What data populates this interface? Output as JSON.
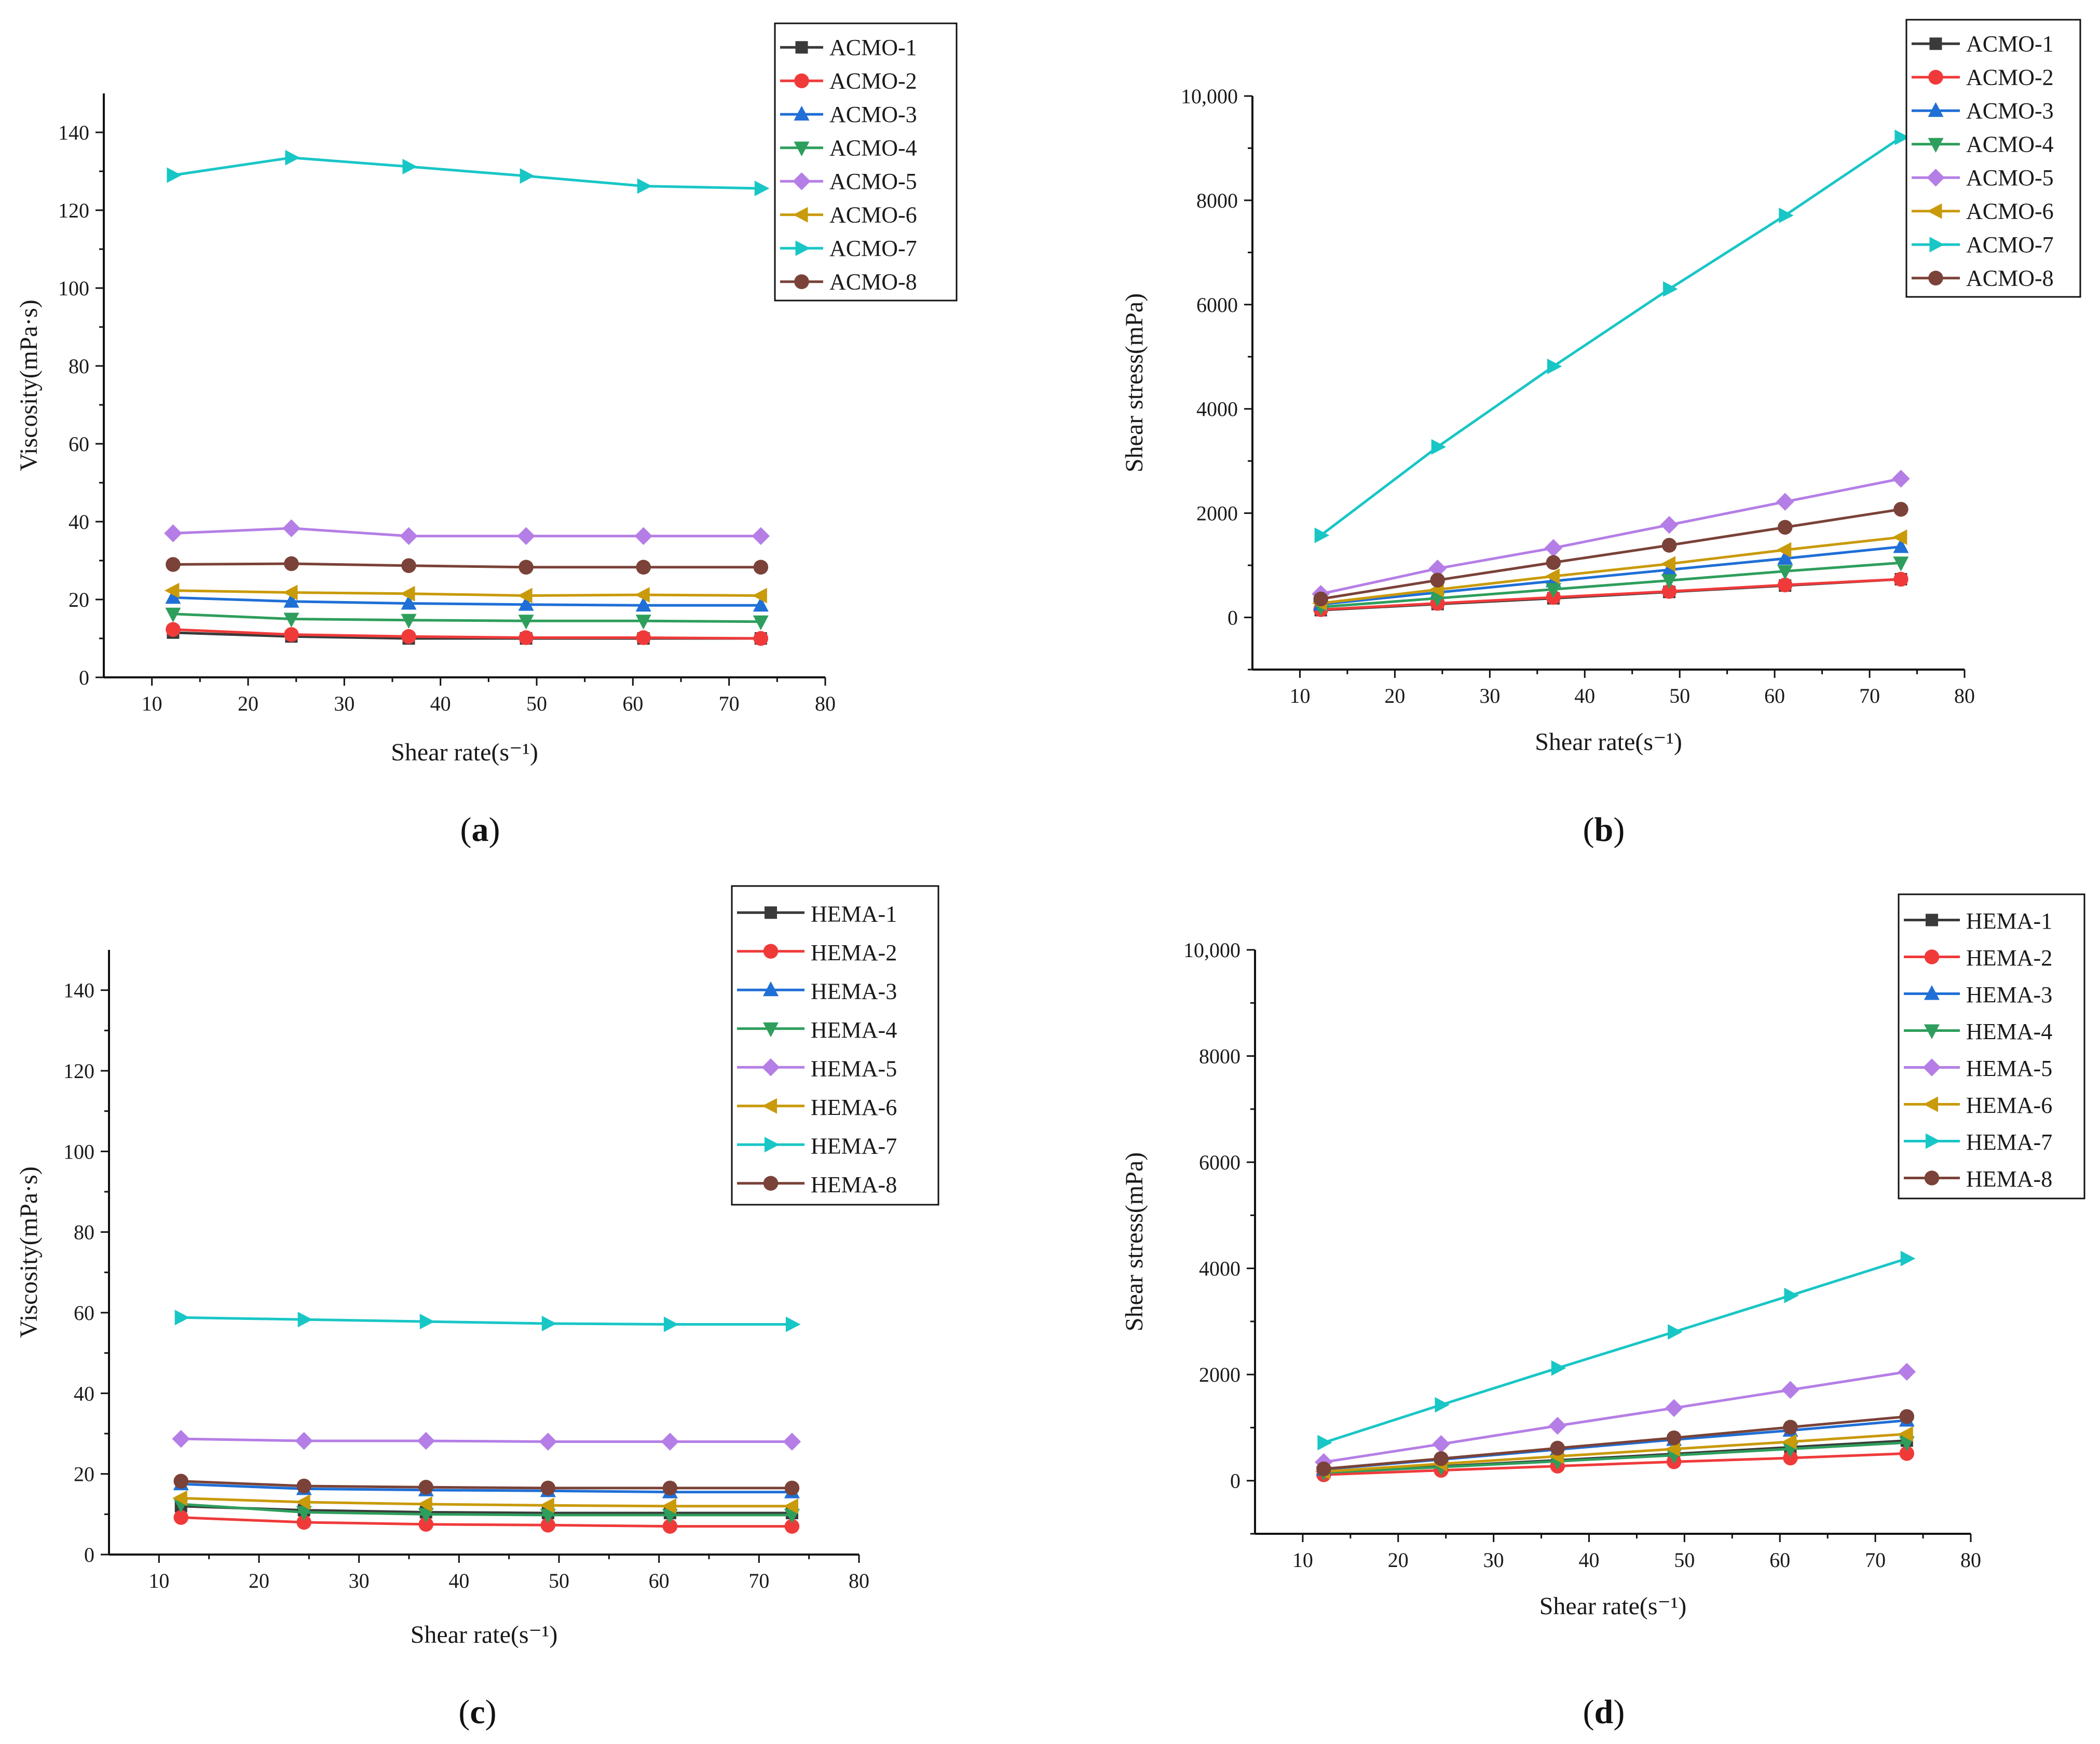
{
  "colors": {
    "black": "#3a3a3a",
    "red": "#f03a3a",
    "blue": "#1f6fd6",
    "green": "#2e9e5c",
    "purple": "#b57ee6",
    "gold": "#c99a0a",
    "cyan": "#19c6c6",
    "brown": "#7a4238"
  },
  "chart_data": [
    {
      "panel": "a",
      "panel_label": "a",
      "type": "line",
      "xlabel": "Shear rate(s⁻¹)",
      "ylabel": "Viscosity(mPa·s)",
      "xlim": [
        5,
        80
      ],
      "ylim": [
        0,
        150
      ],
      "xticks": [
        10,
        20,
        30,
        40,
        50,
        60,
        70,
        80
      ],
      "yticks": [
        0,
        20,
        40,
        60,
        80,
        100,
        120,
        140
      ],
      "ytick_labels": [
        "0",
        "20",
        "40",
        "60",
        "80",
        "100",
        "120",
        "140"
      ],
      "x": [
        12.2,
        24.5,
        36.7,
        48.9,
        61.1,
        73.3
      ],
      "series": [
        {
          "name": "ACMO-1",
          "color": "black",
          "marker": "square",
          "values": [
            11.5,
            10.5,
            10,
            10,
            10,
            10
          ]
        },
        {
          "name": "ACMO-2",
          "color": "red",
          "marker": "circle",
          "values": [
            12.3,
            11,
            10.5,
            10.2,
            10.2,
            10
          ]
        },
        {
          "name": "ACMO-3",
          "color": "blue",
          "marker": "triangle-up",
          "values": [
            20.5,
            19.5,
            19,
            18.7,
            18.5,
            18.5
          ]
        },
        {
          "name": "ACMO-4",
          "color": "green",
          "marker": "triangle-down",
          "values": [
            16.3,
            15,
            14.7,
            14.5,
            14.5,
            14.3
          ]
        },
        {
          "name": "ACMO-5",
          "color": "purple",
          "marker": "diamond",
          "values": [
            37,
            38.3,
            36.3,
            36.3,
            36.3,
            36.3
          ]
        },
        {
          "name": "ACMO-6",
          "color": "gold",
          "marker": "triangle-left",
          "values": [
            22.3,
            21.8,
            21.5,
            21,
            21.2,
            21
          ]
        },
        {
          "name": "ACMO-7",
          "color": "cyan",
          "marker": "triangle-right",
          "values": [
            129,
            133.5,
            131.2,
            128.8,
            126.2,
            125.6
          ]
        },
        {
          "name": "ACMO-8",
          "color": "brown",
          "marker": "circle",
          "values": [
            29,
            29.2,
            28.7,
            28.3,
            28.3,
            28.3
          ]
        }
      ]
    },
    {
      "panel": "b",
      "panel_label": "b",
      "type": "line",
      "xlabel": "Shear rate(s⁻¹)",
      "ylabel": "Shear stress(mPa)",
      "xlim": [
        5,
        80
      ],
      "ylim": [
        -1000,
        10000
      ],
      "xticks": [
        10,
        20,
        30,
        40,
        50,
        60,
        70,
        80
      ],
      "yticks": [
        0,
        2000,
        4000,
        6000,
        8000,
        10000
      ],
      "ytick_labels": [
        "0",
        "2000",
        "4000",
        "6000",
        "8000",
        "10,000"
      ],
      "x": [
        12.2,
        24.5,
        36.7,
        48.9,
        61.1,
        73.3
      ],
      "series": [
        {
          "name": "ACMO-1",
          "color": "black",
          "marker": "square",
          "values": [
            140,
            257,
            367,
            489,
            611,
            733
          ]
        },
        {
          "name": "ACMO-2",
          "color": "red",
          "marker": "circle",
          "values": [
            150,
            270,
            385,
            499,
            623,
            733
          ]
        },
        {
          "name": "ACMO-3",
          "color": "blue",
          "marker": "triangle-up",
          "values": [
            250,
            478,
            697,
            914,
            1130,
            1356
          ]
        },
        {
          "name": "ACMO-4",
          "color": "green",
          "marker": "triangle-down",
          "values": [
            199,
            367,
            539,
            709,
            886,
            1048
          ]
        },
        {
          "name": "ACMO-5",
          "color": "purple",
          "marker": "diamond",
          "values": [
            451,
            938,
            1332,
            1775,
            2218,
            2661
          ]
        },
        {
          "name": "ACMO-6",
          "color": "gold",
          "marker": "triangle-left",
          "values": [
            272,
            534,
            789,
            1027,
            1295,
            1539
          ]
        },
        {
          "name": "ACMO-7",
          "color": "cyan",
          "marker": "triangle-right",
          "values": [
            1574,
            3271,
            4815,
            6298,
            7711,
            9207
          ]
        },
        {
          "name": "ACMO-8",
          "color": "brown",
          "marker": "circle",
          "values": [
            354,
            715,
            1053,
            1384,
            1729,
            2074
          ]
        }
      ]
    },
    {
      "panel": "c",
      "panel_label": "c",
      "type": "line",
      "xlabel": "Shear rate(s⁻¹)",
      "ylabel": "Viscosity(mPa·s)",
      "xlim": [
        5,
        80
      ],
      "ylim": [
        0,
        150
      ],
      "xticks": [
        10,
        20,
        30,
        40,
        50,
        60,
        70,
        80
      ],
      "yticks": [
        0,
        20,
        40,
        60,
        80,
        100,
        120,
        140
      ],
      "ytick_labels": [
        "0",
        "20",
        "40",
        "60",
        "80",
        "100",
        "120",
        "140"
      ],
      "x": [
        12.2,
        24.5,
        36.7,
        48.9,
        61.1,
        73.3
      ],
      "series": [
        {
          "name": "HEMA-1",
          "color": "black",
          "marker": "square",
          "values": [
            12,
            11,
            10.5,
            10.3,
            10.3,
            10.3
          ]
        },
        {
          "name": "HEMA-2",
          "color": "red",
          "marker": "circle",
          "values": [
            9.2,
            8,
            7.5,
            7.3,
            7,
            7
          ]
        },
        {
          "name": "HEMA-3",
          "color": "blue",
          "marker": "triangle-up",
          "values": [
            17.5,
            16.3,
            16,
            15.8,
            15.5,
            15.5
          ]
        },
        {
          "name": "HEMA-4",
          "color": "green",
          "marker": "triangle-down",
          "values": [
            12.5,
            10.5,
            10,
            9.8,
            9.8,
            9.8
          ]
        },
        {
          "name": "HEMA-5",
          "color": "purple",
          "marker": "diamond",
          "values": [
            28.7,
            28.2,
            28.2,
            28,
            28,
            28
          ]
        },
        {
          "name": "HEMA-6",
          "color": "gold",
          "marker": "triangle-left",
          "values": [
            14,
            13,
            12.5,
            12.2,
            12,
            12
          ]
        },
        {
          "name": "HEMA-7",
          "color": "cyan",
          "marker": "triangle-right",
          "values": [
            58.8,
            58.3,
            57.8,
            57.3,
            57.1,
            57.1
          ]
        },
        {
          "name": "HEMA-8",
          "color": "brown",
          "marker": "circle",
          "values": [
            18.2,
            17,
            16.7,
            16.5,
            16.5,
            16.5
          ]
        }
      ]
    },
    {
      "panel": "d",
      "panel_label": "d",
      "type": "line",
      "xlabel": "Shear rate(s⁻¹)",
      "ylabel": "Shear stress(mPa)",
      "xlim": [
        5,
        80
      ],
      "ylim": [
        -1000,
        10000
      ],
      "xticks": [
        10,
        20,
        30,
        40,
        50,
        60,
        70,
        80
      ],
      "yticks": [
        0,
        2000,
        4000,
        6000,
        8000,
        10000
      ],
      "ytick_labels": [
        "0",
        "2000",
        "4000",
        "6000",
        "8000",
        "10,000"
      ],
      "x": [
        12.2,
        24.5,
        36.7,
        48.9,
        61.1,
        73.3
      ],
      "series": [
        {
          "name": "HEMA-1",
          "color": "black",
          "marker": "square",
          "values": [
            150,
            270,
            385,
            504,
            630,
            755
          ]
        },
        {
          "name": "HEMA-2",
          "color": "red",
          "marker": "circle",
          "values": [
            112,
            196,
            275,
            357,
            428,
            513
          ]
        },
        {
          "name": "HEMA-3",
          "color": "blue",
          "marker": "triangle-up",
          "values": [
            213,
            399,
            587,
            773,
            947,
            1136
          ]
        },
        {
          "name": "HEMA-4",
          "color": "green",
          "marker": "triangle-down",
          "values": [
            153,
            257,
            367,
            479,
            599,
            718
          ]
        },
        {
          "name": "HEMA-5",
          "color": "purple",
          "marker": "diamond",
          "values": [
            350,
            690,
            1035,
            1369,
            1711,
            2052
          ]
        },
        {
          "name": "HEMA-6",
          "color": "gold",
          "marker": "triangle-left",
          "values": [
            171,
            318,
            459,
            597,
            733,
            880
          ]
        },
        {
          "name": "HEMA-7",
          "color": "cyan",
          "marker": "triangle-right",
          "values": [
            717,
            1428,
            2121,
            2802,
            3489,
            4185
          ]
        },
        {
          "name": "HEMA-8",
          "color": "brown",
          "marker": "circle",
          "values": [
            222,
            416,
            613,
            807,
            1008,
            1209
          ]
        }
      ]
    }
  ]
}
